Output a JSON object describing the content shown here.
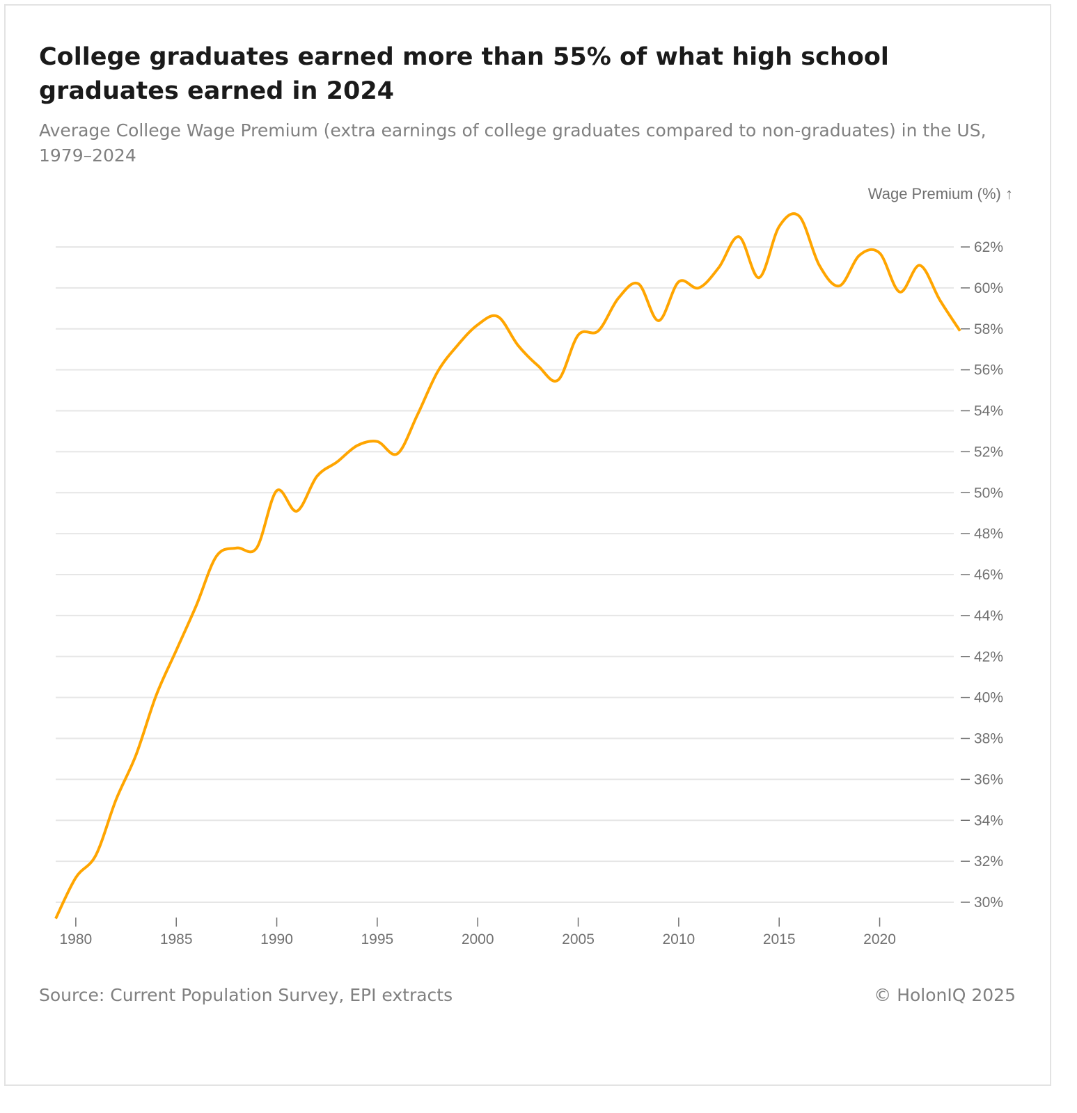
{
  "chart_data": {
    "type": "line",
    "title": "College graduates earned more than 55% of what high school graduates earned in 2024",
    "subtitle": "Average College Wage Premium (extra earnings of college graduates compared to non-graduates) in the US, 1979–2024",
    "xlabel": "",
    "ylabel": "Wage Premium (%) ↑",
    "xlim": [
      1979,
      2024
    ],
    "ylim": [
      30,
      62
    ],
    "grid": true,
    "x_ticks": [
      1980,
      1985,
      1990,
      1995,
      2000,
      2005,
      2010,
      2015,
      2020
    ],
    "y_ticks": [
      30,
      32,
      34,
      36,
      38,
      40,
      42,
      44,
      46,
      48,
      50,
      52,
      54,
      56,
      58,
      60,
      62
    ],
    "line_color": "#FFA500",
    "series": [
      {
        "name": "Wage Premium",
        "x": [
          1979,
          1980,
          1981,
          1982,
          1983,
          1984,
          1985,
          1986,
          1987,
          1988,
          1989,
          1990,
          1991,
          1992,
          1993,
          1994,
          1995,
          1996,
          1997,
          1998,
          1999,
          2000,
          2001,
          2002,
          2003,
          2004,
          2005,
          2006,
          2007,
          2008,
          2009,
          2010,
          2011,
          2012,
          2013,
          2014,
          2015,
          2016,
          2017,
          2018,
          2019,
          2020,
          2021,
          2022,
          2023,
          2024
        ],
        "values": [
          29.2,
          31.2,
          32.3,
          35.0,
          37.2,
          40.1,
          42.3,
          44.5,
          46.9,
          47.3,
          47.3,
          50.1,
          49.1,
          50.8,
          51.5,
          52.3,
          52.5,
          51.9,
          53.8,
          55.9,
          57.2,
          58.2,
          58.6,
          57.2,
          56.2,
          55.5,
          57.7,
          57.9,
          59.5,
          60.2,
          58.4,
          60.3,
          60.0,
          61.0,
          62.5,
          60.5,
          63.0,
          63.5,
          61.1,
          60.1,
          61.6,
          61.7,
          59.8,
          61.1,
          59.4,
          57.9
        ]
      }
    ]
  },
  "footer": {
    "source": "Source: Current Population Survey, EPI extracts",
    "copyright": "© HolonIQ 2025"
  }
}
